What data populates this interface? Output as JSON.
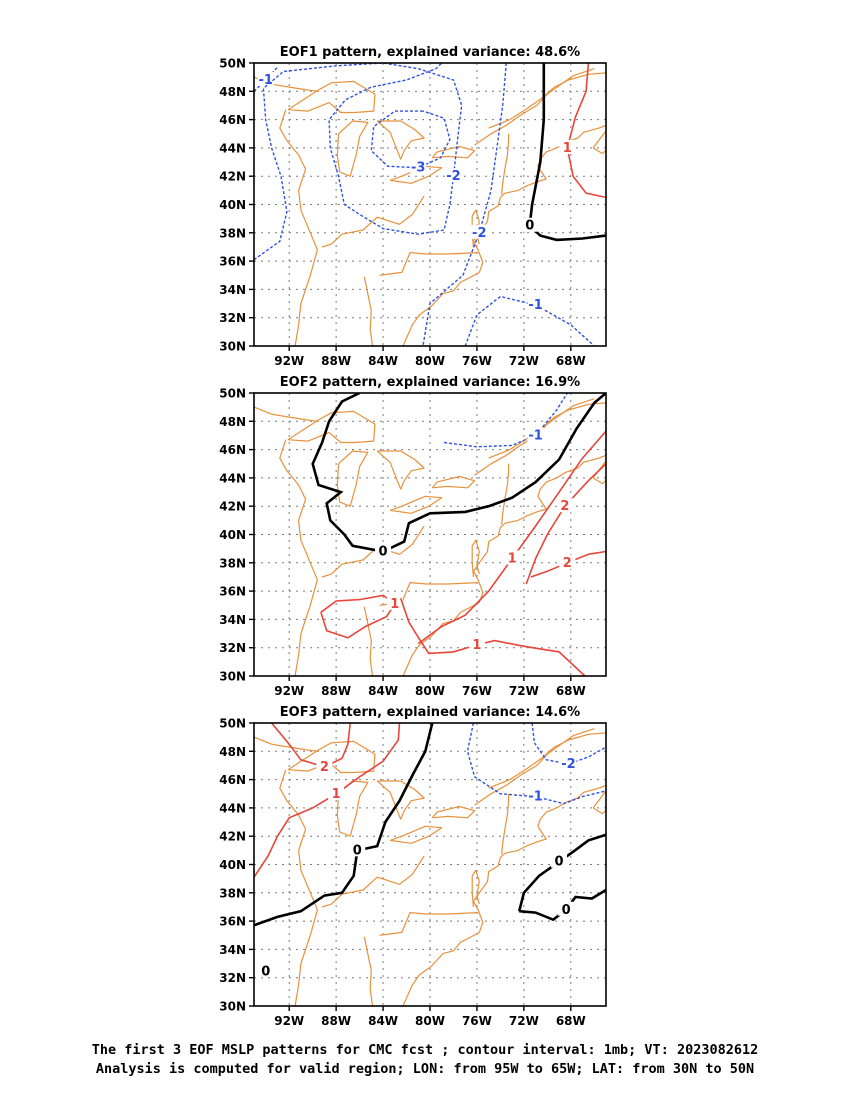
{
  "chart_data": [
    {
      "type": "contour",
      "title": "EOF1 pattern, explained variance: 48.6%",
      "x_ticks": [
        "92W",
        "88W",
        "84W",
        "80W",
        "76W",
        "72W",
        "68W"
      ],
      "y_ticks": [
        "50N",
        "48N",
        "46N",
        "44N",
        "42N",
        "40N",
        "38N",
        "36N",
        "34N",
        "32N",
        "30N"
      ],
      "xlim": [
        -95,
        -65
      ],
      "ylim": [
        30,
        50
      ],
      "contours": [
        {
          "level": -1,
          "label": "-1",
          "color": "#2f52e0",
          "style": "dashed",
          "points": [
            [
              -95,
              48
            ],
            [
              -94,
              48.8
            ],
            [
              -93,
              49.7
            ]
          ]
        },
        {
          "level": -1,
          "label": "-1",
          "color": "#2f52e0",
          "style": "dashed",
          "points": [
            [
              -77,
              30.0
            ],
            [
              -76,
              32.2
            ],
            [
              -74,
              33.5
            ],
            [
              -71,
              32.9
            ],
            [
              -68,
              31.5
            ],
            [
              -66,
              30
            ]
          ]
        },
        {
          "level": -2,
          "label": "-2",
          "color": "#2f52e0",
          "style": "dashed",
          "points": [
            [
              -95,
              36.1
            ],
            [
              -92.8,
              37.4
            ],
            [
              -92.2,
              39.5
            ],
            [
              -92.7,
              42
            ],
            [
              -93.5,
              44
            ],
            [
              -94,
              46
            ],
            [
              -94.2,
              48.2
            ],
            [
              -92.5,
              49.4
            ],
            [
              -88,
              49.8
            ],
            [
              -84,
              50
            ],
            [
              -81,
              49.6
            ],
            [
              -78,
              48.8
            ],
            [
              -77.3,
              47
            ],
            [
              -77.6,
              45
            ],
            [
              -78,
              42
            ],
            [
              -78.3,
              40
            ],
            [
              -78.8,
              38.2
            ],
            [
              -81,
              37.9
            ],
            [
              -84,
              38.3
            ],
            [
              -86,
              39.3
            ],
            [
              -87.3,
              40
            ],
            [
              -87.8,
              42
            ],
            [
              -88.5,
              44
            ],
            [
              -88.6,
              46
            ],
            [
              -87.2,
              47.4
            ],
            [
              -85,
              48.3
            ],
            [
              -82,
              48.8
            ],
            [
              -79.5,
              49.6
            ],
            [
              -79,
              50
            ]
          ]
        },
        {
          "level": -2,
          "label": "-2",
          "color": "#2f52e0",
          "style": "dashed",
          "points": [
            [
              -73.5,
              50
            ],
            [
              -73.8,
              47
            ],
            [
              -74.3,
              44
            ],
            [
              -74.8,
              41
            ],
            [
              -75.8,
              38
            ],
            [
              -77.2,
              35
            ],
            [
              -80,
              33
            ],
            [
              -80.6,
              30
            ]
          ]
        },
        {
          "level": -3,
          "label": "-3",
          "color": "#2f52e0",
          "style": "dashed",
          "points": [
            [
              -80.6,
              46.6
            ],
            [
              -83,
              46.6
            ],
            [
              -84.8,
              45.5
            ],
            [
              -85,
              43.8
            ],
            [
              -83.6,
              42.7
            ],
            [
              -81,
              42.6
            ],
            [
              -79.1,
              43.3
            ],
            [
              -78.3,
              44.6
            ],
            [
              -78.8,
              46.1
            ],
            [
              -80.6,
              46.6
            ]
          ]
        },
        {
          "level": 0,
          "label": "0",
          "color": "#000000",
          "style": "solid",
          "points": [
            [
              -70.3,
              50
            ],
            [
              -70.3,
              46
            ],
            [
              -70.6,
              43
            ],
            [
              -71.3,
              40
            ],
            [
              -71.5,
              38.5
            ],
            [
              -70.6,
              37.8
            ],
            [
              -69.2,
              37.5
            ],
            [
              -67,
              37.6
            ],
            [
              -65,
              37.8
            ]
          ]
        },
        {
          "level": 1,
          "label": "1",
          "color": "#e8453c",
          "style": "solid",
          "points": [
            [
              -66.5,
              50
            ],
            [
              -66.7,
              48
            ],
            [
              -67.6,
              46.2
            ],
            [
              -68.3,
              44
            ],
            [
              -67.8,
              42
            ],
            [
              -66.7,
              40.8
            ],
            [
              -65,
              40.5
            ]
          ]
        }
      ]
    },
    {
      "type": "contour",
      "title": "EOF2 pattern, explained variance: 16.9%",
      "x_ticks": [
        "92W",
        "88W",
        "84W",
        "80W",
        "76W",
        "72W",
        "68W"
      ],
      "y_ticks": [
        "50N",
        "48N",
        "46N",
        "44N",
        "42N",
        "40N",
        "38N",
        "36N",
        "34N",
        "32N",
        "30N"
      ],
      "xlim": [
        -95,
        -65
      ],
      "ylim": [
        30,
        50
      ],
      "contours": [
        {
          "level": -1,
          "label": "-1",
          "color": "#2f52e0",
          "style": "dashed",
          "points": [
            [
              -78.8,
              46.5
            ],
            [
              -76,
              46.2
            ],
            [
              -73,
              46.3
            ],
            [
              -71,
              47
            ],
            [
              -69.2,
              48.8
            ],
            [
              -68.3,
              50
            ]
          ]
        },
        {
          "level": 0,
          "label": "0",
          "color": "#000000",
          "style": "solid",
          "points": [
            [
              -86,
              50
            ],
            [
              -87.5,
              49.4
            ],
            [
              -88.6,
              48
            ],
            [
              -89.2,
              46.5
            ],
            [
              -90,
              45
            ],
            [
              -89.5,
              43.5
            ],
            [
              -87.6,
              43
            ],
            [
              -88.8,
              42.2
            ],
            [
              -88.5,
              41
            ],
            [
              -87.3,
              40
            ],
            [
              -86.6,
              39.2
            ],
            [
              -84,
              38.8
            ],
            [
              -82.2,
              39.5
            ],
            [
              -81.8,
              40.8
            ],
            [
              -80,
              41.5
            ],
            [
              -77,
              41.6
            ],
            [
              -75,
              42
            ],
            [
              -73,
              42.6
            ],
            [
              -71,
              43.7
            ],
            [
              -69,
              45.3
            ],
            [
              -67.5,
              47.5
            ],
            [
              -66,
              49.3
            ],
            [
              -65,
              50
            ]
          ]
        },
        {
          "level": 1,
          "label": "1",
          "color": "#e8453c",
          "style": "solid",
          "points": [
            [
              -89.3,
              34.5
            ],
            [
              -88.8,
              33.2
            ],
            [
              -87,
              32.7
            ],
            [
              -85.5,
              33.5
            ],
            [
              -83.7,
              34.2
            ],
            [
              -83,
              35.1
            ],
            [
              -84,
              35.7
            ],
            [
              -86,
              35.4
            ],
            [
              -88,
              35.3
            ],
            [
              -89.3,
              34.5
            ]
          ]
        },
        {
          "level": 1,
          "label": "1",
          "color": "#e8453c",
          "style": "solid",
          "points": [
            [
              -82.5,
              35.5
            ],
            [
              -81.8,
              33.8
            ],
            [
              -80.9,
              32.6
            ],
            [
              -80.1,
              31.6
            ],
            [
              -78,
              31.7
            ],
            [
              -76,
              32.2
            ],
            [
              -74.5,
              32.5
            ],
            [
              -72,
              32.1
            ],
            [
              -69,
              31.7
            ],
            [
              -66.8,
              30
            ]
          ]
        },
        {
          "level": 1,
          "label": "1",
          "color": "#e8453c",
          "style": "solid",
          "points": [
            [
              -81,
              32.3
            ],
            [
              -79,
              33.5
            ],
            [
              -77,
              34.3
            ],
            [
              -75,
              36
            ],
            [
              -73,
              38.3
            ],
            [
              -71,
              40.6
            ],
            [
              -69,
              43
            ],
            [
              -67,
              45.4
            ],
            [
              -65,
              47.3
            ]
          ]
        },
        {
          "level": 2,
          "label": "2",
          "color": "#e8453c",
          "style": "solid",
          "points": [
            [
              -71.8,
              36.5
            ],
            [
              -71,
              38.3
            ],
            [
              -70,
              40
            ],
            [
              -68.5,
              42
            ],
            [
              -66.5,
              43.8
            ],
            [
              -65,
              45
            ]
          ]
        },
        {
          "level": 2,
          "label": "2",
          "color": "#e8453c",
          "style": "solid",
          "points": [
            [
              -71.4,
              37
            ],
            [
              -70,
              37.4
            ],
            [
              -68.3,
              38
            ],
            [
              -66.5,
              38.6
            ],
            [
              -65,
              38.8
            ]
          ]
        }
      ]
    },
    {
      "type": "contour",
      "title": "EOF3 pattern, explained variance: 14.6%",
      "x_ticks": [
        "92W",
        "88W",
        "84W",
        "80W",
        "76W",
        "72W",
        "68W"
      ],
      "y_ticks": [
        "50N",
        "48N",
        "46N",
        "44N",
        "42N",
        "40N",
        "38N",
        "36N",
        "34N",
        "32N",
        "30N"
      ],
      "xlim": [
        -95,
        -65
      ],
      "ylim": [
        30,
        50
      ],
      "contours": [
        {
          "level": -1,
          "label": "-1",
          "color": "#2f52e0",
          "style": "dashed",
          "points": [
            [
              -76.3,
              50
            ],
            [
              -76.8,
              48
            ],
            [
              -76.2,
              46.2
            ],
            [
              -74,
              45
            ],
            [
              -71,
              44.8
            ],
            [
              -68.6,
              44.3
            ],
            [
              -67,
              44.8
            ],
            [
              -65,
              45.2
            ]
          ]
        },
        {
          "level": -2,
          "label": "-2",
          "color": "#2f52e0",
          "style": "dashed",
          "points": [
            [
              -71.3,
              50
            ],
            [
              -71.1,
              48.6
            ],
            [
              -70.1,
              47.4
            ],
            [
              -68.2,
              47.1
            ],
            [
              -66.5,
              47.6
            ],
            [
              -65,
              48.3
            ]
          ]
        },
        {
          "level": 0,
          "label": "0",
          "color": "#000000",
          "style": "solid",
          "points": [
            [
              -95,
              35.7
            ],
            [
              -93,
              36.3
            ],
            [
              -91,
              36.7
            ],
            [
              -89,
              37.8
            ],
            [
              -87.5,
              38
            ],
            [
              -86.5,
              39.2
            ],
            [
              -86.2,
              41
            ],
            [
              -84.5,
              41.3
            ],
            [
              -83.8,
              43
            ],
            [
              -82.6,
              44.5
            ],
            [
              -81.5,
              46.3
            ],
            [
              -80.4,
              48
            ],
            [
              -79.8,
              50
            ]
          ]
        },
        {
          "level": 0,
          "label": "0",
          "color": "#000000",
          "style": "solid",
          "points": [
            [
              -72.4,
              36.7
            ],
            [
              -71,
              36.6
            ],
            [
              -69.5,
              36.1
            ],
            [
              -68.4,
              36.8
            ],
            [
              -67.6,
              37.7
            ],
            [
              -66.2,
              37.6
            ],
            [
              -65,
              38.2
            ]
          ]
        },
        {
          "level": 0,
          "label": "0",
          "color": "#000000",
          "style": "solid",
          "points": [
            [
              -72.4,
              36.7
            ],
            [
              -72,
              38
            ],
            [
              -70.7,
              39.2
            ],
            [
              -69,
              40.2
            ],
            [
              -67.8,
              40.9
            ],
            [
              -66.5,
              41.7
            ],
            [
              -65,
              42.1
            ]
          ]
        },
        {
          "level": 1,
          "label": "1",
          "color": "#e8453c",
          "style": "solid",
          "points": [
            [
              -95,
              39.1
            ],
            [
              -93.8,
              40.6
            ],
            [
              -93,
              42
            ],
            [
              -92,
              43.3
            ],
            [
              -90,
              44
            ],
            [
              -88,
              45
            ],
            [
              -86,
              46.2
            ],
            [
              -84,
              47.3
            ],
            [
              -82.7,
              48.8
            ],
            [
              -82.6,
              50
            ]
          ]
        },
        {
          "level": 2,
          "label": "2",
          "color": "#e8453c",
          "style": "solid",
          "points": [
            [
              -93.5,
              50
            ],
            [
              -92,
              48.5
            ],
            [
              -91,
              47.4
            ],
            [
              -89,
              46.9
            ],
            [
              -87.5,
              47.5
            ],
            [
              -87,
              48.5
            ],
            [
              -86.8,
              50
            ]
          ]
        }
      ],
      "annotations": [
        {
          "text": "0",
          "x": -94,
          "y": 32.5
        }
      ]
    }
  ],
  "caption": {
    "line1": "The first 3 EOF MSLP patterns for CMC fcst ; contour interval: 1mb; VT: 2023082612",
    "line2": "Analysis is computed for valid region; LON: from 95W to 65W; LAT: from 30N to 50N"
  },
  "colors": {
    "negative": "#2f52e0",
    "zero": "#000000",
    "positive": "#e8453c",
    "coastline": "#e8913c"
  }
}
